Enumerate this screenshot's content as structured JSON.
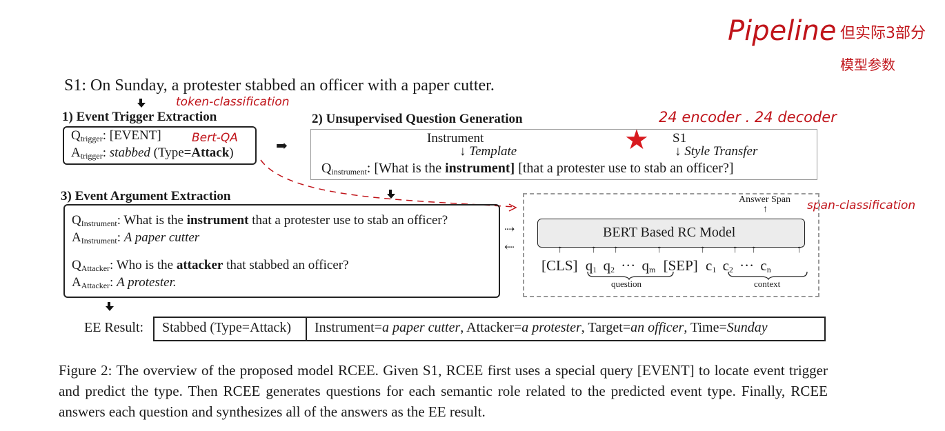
{
  "handwritten": {
    "pipeline": "Pipeline",
    "note_line1": "但实际3部分",
    "note_line2": "模型参数",
    "token_classification": "token-classification",
    "bert_qa": "Bert-QA",
    "encoder_decoder": "24 encoder . 24 decoder",
    "span_classification": "span-classification"
  },
  "sentence": {
    "s1": "S1: On Sunday, a protester stabbed an officer with a paper cutter."
  },
  "trigger": {
    "heading": "1) Event Trigger Extraction",
    "q_label": "Q",
    "q_sub": "trigger",
    "q_text": ": [EVENT]",
    "a_label": "A",
    "a_sub": "trigger",
    "a_colon": ": ",
    "a_word": "stabbed",
    "a_type_pre": " (Type=",
    "a_type": "Attack",
    "a_type_post": ")"
  },
  "question_gen": {
    "heading": "2) Unsupervised Question Generation",
    "instrument": "Instrument",
    "template": "Template",
    "s1": "S1",
    "style_transfer": "Style Transfer",
    "q_label": "Q",
    "q_sub": "instrument",
    "q_p1": ": [What is the ",
    "q_bold": "instrument",
    "q_p2": "] ",
    "q_p3": "[that a protester use to stab an officer?]"
  },
  "argument": {
    "heading": "3) Event Argument Extraction",
    "q1_label": "Q",
    "q1_sub": "Instrument",
    "q1_p1": ": What is the ",
    "q1_bold": "instrument",
    "q1_p2": " that a protester use to stab an officer?",
    "a1_label": "A",
    "a1_sub": "Instrument",
    "a1_colon": ": ",
    "a1_text": "A paper cutter",
    "q2_label": "Q",
    "q2_sub": "Attacker",
    "q2_p1": ": Who is the ",
    "q2_bold": "attacker",
    "q2_p2": " that stabbed an officer?",
    "a2_label": "A",
    "a2_sub": "Attacker",
    "a2_colon": ": ",
    "a2_text": "A protester."
  },
  "rc_model": {
    "answer_span": "Answer Span",
    "title": "BERT Based RC Model",
    "cls": "[CLS]",
    "q1": "q",
    "q1_sub": "1",
    "q2": "q",
    "q2_sub": "2",
    "dots1": "···",
    "qm": "q",
    "qm_sub": "m",
    "sep": "[SEP]",
    "c1": "c",
    "c1_sub": "1",
    "c2": "c",
    "c2_sub": "2",
    "dots2": "···",
    "cn": "c",
    "cn_sub": "n",
    "question_label": "question",
    "context_label": "context"
  },
  "result": {
    "label": "EE Result:",
    "trigger": "Stabbed (Type=Attack)",
    "r1": "Instrument=",
    "r1v": "a paper cutter",
    "r2": ", Attacker=",
    "r2v": "a protester",
    "r3": ", Target=",
    "r3v": "an officer",
    "r4": ", Time=",
    "r4v": "Sunday"
  },
  "caption": "Figure 2: The overview of the proposed model RCEE. Given S1, RCEE first uses a special query [EVENT] to locate event trigger and predict the type. Then RCEE generates questions for each semantic role related to the predicted event type. Finally, RCEE answers each question and synthesizes all of the answers as the EE result.",
  "colors": {
    "ink": "#1a1a1a",
    "annotation": "#c0141a",
    "rc_fill": "#ececec"
  }
}
